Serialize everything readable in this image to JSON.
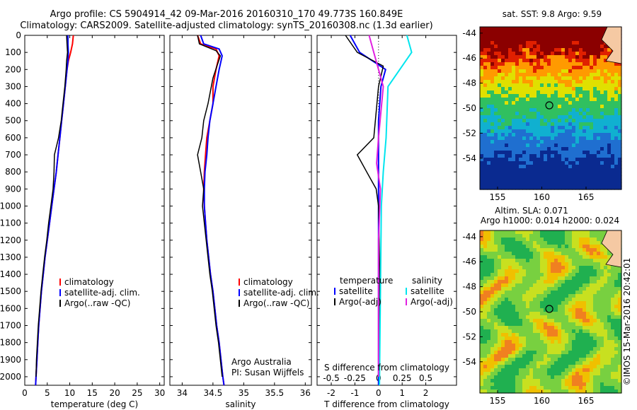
{
  "header": {
    "line1": "Argo profile: CS 5904914_42 09-Mar-2016 20160310_170 49.773S 160.849E",
    "line2": "Climatology: CARS2009. Satellite-adjusted climatology: synTS_20160308.nc (1.3d earlier)"
  },
  "chart_data": [
    {
      "type": "line",
      "xlabel": "temperature (deg C)",
      "xlim": [
        0,
        31
      ],
      "xticks": [
        0,
        5,
        10,
        15,
        20,
        25,
        30
      ],
      "ylim": [
        0,
        2050
      ],
      "yticks": [
        0,
        100,
        200,
        300,
        400,
        500,
        600,
        700,
        800,
        900,
        1000,
        1100,
        1200,
        1300,
        1400,
        1500,
        1600,
        1700,
        1800,
        1900,
        2000
      ],
      "yinverted": true,
      "legend": [
        "climatology",
        "satellite-adj. clim.",
        "Argo(..raw -QC)"
      ],
      "colors": {
        "climatology": "#ff0000",
        "satellite": "#0000ff",
        "argo": "#000000"
      },
      "series": [
        {
          "name": "climatology",
          "values": [
            [
              10.8,
              0
            ],
            [
              10.6,
              50
            ],
            [
              10.2,
              100
            ],
            [
              9.7,
              150
            ],
            [
              9.4,
              200
            ],
            [
              9.0,
              300
            ],
            [
              8.6,
              400
            ],
            [
              8.2,
              500
            ],
            [
              7.8,
              600
            ],
            [
              7.4,
              700
            ],
            [
              7.0,
              800
            ],
            [
              6.5,
              900
            ],
            [
              6.0,
              1000
            ],
            [
              5.5,
              1100
            ],
            [
              5.0,
              1200
            ],
            [
              4.5,
              1300
            ],
            [
              4.1,
              1400
            ],
            [
              3.7,
              1500
            ],
            [
              3.4,
              1600
            ],
            [
              3.1,
              1700
            ],
            [
              2.9,
              1800
            ],
            [
              2.7,
              1900
            ],
            [
              2.5,
              2000
            ],
            [
              2.4,
              2050
            ]
          ]
        },
        {
          "name": "satellite-adj. clim.",
          "values": [
            [
              9.6,
              0
            ],
            [
              9.6,
              50
            ],
            [
              9.7,
              100
            ],
            [
              9.6,
              150
            ],
            [
              9.4,
              200
            ],
            [
              9.0,
              300
            ],
            [
              8.6,
              400
            ],
            [
              8.2,
              500
            ],
            [
              7.8,
              600
            ],
            [
              7.4,
              700
            ],
            [
              7.0,
              800
            ],
            [
              6.5,
              900
            ],
            [
              6.0,
              1000
            ],
            [
              5.5,
              1100
            ],
            [
              5.0,
              1200
            ],
            [
              4.5,
              1300
            ],
            [
              4.1,
              1400
            ],
            [
              3.7,
              1500
            ],
            [
              3.4,
              1600
            ],
            [
              3.1,
              1700
            ],
            [
              2.9,
              1800
            ],
            [
              2.7,
              1900
            ],
            [
              2.5,
              2000
            ],
            [
              2.4,
              2050
            ]
          ]
        },
        {
          "name": "Argo(..raw -QC)",
          "values": [
            [
              9.3,
              0
            ],
            [
              9.4,
              50
            ],
            [
              9.5,
              100
            ],
            [
              9.3,
              150
            ],
            [
              9.2,
              200
            ],
            [
              8.9,
              300
            ],
            [
              8.5,
              400
            ],
            [
              8.1,
              500
            ],
            [
              7.5,
              600
            ],
            [
              6.6,
              700
            ],
            [
              6.5,
              800
            ],
            [
              6.3,
              900
            ],
            [
              5.8,
              1000
            ],
            [
              5.3,
              1100
            ],
            [
              4.9,
              1200
            ],
            [
              4.4,
              1300
            ],
            [
              4.0,
              1400
            ],
            [
              3.6,
              1500
            ],
            [
              3.3,
              1600
            ],
            [
              3.0,
              1700
            ],
            [
              2.8,
              1800
            ],
            [
              2.6,
              1900
            ],
            [
              2.5,
              2000
            ]
          ]
        }
      ]
    },
    {
      "type": "line",
      "xlabel": "salinity",
      "xlim": [
        33.8,
        36.1
      ],
      "xticks": [
        34,
        34.5,
        35,
        35.5,
        36
      ],
      "ylim": [
        0,
        2050
      ],
      "yinverted": true,
      "legend": [
        "climatology",
        "satellite-adj. clim.",
        "Argo(..raw -QC)"
      ],
      "annotation": [
        "Argo Australia",
        "PI: Susan Wijffels"
      ],
      "series": [
        {
          "name": "climatology",
          "values": [
            [
              34.25,
              0
            ],
            [
              34.3,
              50
            ],
            [
              34.55,
              80
            ],
            [
              34.6,
              120
            ],
            [
              34.55,
              200
            ],
            [
              34.5,
              300
            ],
            [
              34.5,
              400
            ],
            [
              34.45,
              500
            ],
            [
              34.4,
              600
            ],
            [
              34.38,
              700
            ],
            [
              34.36,
              800
            ],
            [
              34.35,
              900
            ],
            [
              34.36,
              1000
            ],
            [
              34.38,
              1100
            ],
            [
              34.4,
              1200
            ],
            [
              34.43,
              1300
            ],
            [
              34.46,
              1400
            ],
            [
              34.5,
              1500
            ],
            [
              34.53,
              1600
            ],
            [
              34.56,
              1700
            ],
            [
              34.6,
              1800
            ],
            [
              34.63,
              1900
            ],
            [
              34.66,
              2000
            ],
            [
              34.68,
              2050
            ]
          ]
        },
        {
          "name": "satellite-adj. clim.",
          "values": [
            [
              34.3,
              0
            ],
            [
              34.35,
              50
            ],
            [
              34.6,
              80
            ],
            [
              34.65,
              120
            ],
            [
              34.6,
              200
            ],
            [
              34.55,
              300
            ],
            [
              34.5,
              400
            ],
            [
              34.45,
              500
            ],
            [
              34.42,
              600
            ],
            [
              34.4,
              700
            ],
            [
              34.37,
              800
            ],
            [
              34.36,
              900
            ],
            [
              34.36,
              1000
            ],
            [
              34.38,
              1100
            ],
            [
              34.4,
              1200
            ],
            [
              34.43,
              1300
            ],
            [
              34.46,
              1400
            ],
            [
              34.5,
              1500
            ],
            [
              34.53,
              1600
            ],
            [
              34.56,
              1700
            ],
            [
              34.6,
              1800
            ],
            [
              34.63,
              1900
            ],
            [
              34.66,
              2000
            ],
            [
              34.68,
              2050
            ]
          ]
        },
        {
          "name": "Argo(..raw -QC)",
          "values": [
            [
              34.25,
              0
            ],
            [
              34.28,
              50
            ],
            [
              34.55,
              90
            ],
            [
              34.62,
              120
            ],
            [
              34.5,
              250
            ],
            [
              34.42,
              400
            ],
            [
              34.35,
              500
            ],
            [
              34.32,
              600
            ],
            [
              34.25,
              700
            ],
            [
              34.3,
              800
            ],
            [
              34.35,
              900
            ],
            [
              34.33,
              1000
            ],
            [
              34.36,
              1100
            ],
            [
              34.39,
              1200
            ],
            [
              34.42,
              1300
            ],
            [
              34.45,
              1400
            ],
            [
              34.49,
              1500
            ],
            [
              34.52,
              1600
            ],
            [
              34.55,
              1700
            ],
            [
              34.59,
              1800
            ],
            [
              34.62,
              1900
            ],
            [
              34.65,
              2000
            ]
          ]
        }
      ]
    },
    {
      "type": "line",
      "xlabel_bottom": "T difference from climatology",
      "xlabel_top": "S difference from climatology",
      "xlim_T": [
        -2.6,
        3.3
      ],
      "xticks_T": [
        -2,
        -1,
        0,
        1,
        2
      ],
      "xticks_S": [
        -0.5,
        -0.25,
        0,
        0.25,
        0.5
      ],
      "ylim": [
        0,
        2050
      ],
      "yinverted": true,
      "legend_left_title": "temperature",
      "legend_right_title": "salinity",
      "legend": [
        "satellite",
        "Argo(-adj)",
        "satellite",
        "Argo(-adj)"
      ],
      "series": [
        {
          "name": "T satellite",
          "values": [
            [
              -1.2,
              0
            ],
            [
              -0.8,
              100
            ],
            [
              0.3,
              200
            ],
            [
              0.1,
              300
            ],
            [
              0,
              500
            ],
            [
              0,
              800
            ],
            [
              0,
              1000
            ],
            [
              0,
              1500
            ],
            [
              0,
              2050
            ]
          ]
        },
        {
          "name": "T Argo(-adj)",
          "values": [
            [
              -1.4,
              0
            ],
            [
              -0.9,
              100
            ],
            [
              0.2,
              180
            ],
            [
              0,
              300
            ],
            [
              -0.2,
              600
            ],
            [
              -0.9,
              700
            ],
            [
              -0.5,
              800
            ],
            [
              -0.1,
              900
            ],
            [
              0,
              1000
            ],
            [
              0.05,
              1400
            ],
            [
              0,
              2000
            ]
          ]
        },
        {
          "name": "S satellite",
          "values": [
            [
              0.3,
              0
            ],
            [
              0.35,
              100
            ],
            [
              0.1,
              300
            ],
            [
              0.08,
              600
            ],
            [
              0.05,
              800
            ],
            [
              0.03,
              1000
            ],
            [
              0.02,
              1500
            ],
            [
              0.01,
              2050
            ]
          ]
        },
        {
          "name": "S Argo(-adj)",
          "values": [
            [
              -0.1,
              0
            ],
            [
              -0.05,
              100
            ],
            [
              0.05,
              300
            ],
            [
              0.0,
              600
            ],
            [
              -0.02,
              750
            ],
            [
              0.02,
              900
            ],
            [
              0.0,
              1200
            ],
            [
              0.0,
              1600
            ],
            [
              0.0,
              2000
            ]
          ]
        }
      ]
    }
  ],
  "maps": {
    "top": {
      "title": "sat. SST: 9.8  Argo: 9.59",
      "xticks": [
        "155",
        "160",
        "165"
      ],
      "yticks": [
        "-44",
        "-46",
        "-48",
        "-50",
        "-52",
        "-54"
      ]
    },
    "bottom": {
      "title1": "Altim. SLA: 0.071",
      "title2": "Argo h1000: 0.014  h2000: 0.024",
      "xticks": [
        "155",
        "160",
        "165"
      ],
      "yticks": [
        "-44",
        "-46",
        "-48",
        "-50",
        "-52",
        "-54"
      ]
    },
    "argo_location": {
      "lon": 160.849,
      "lat": -49.773
    },
    "credit": "©IMOS 15-Mar-2016 20:42:01"
  }
}
